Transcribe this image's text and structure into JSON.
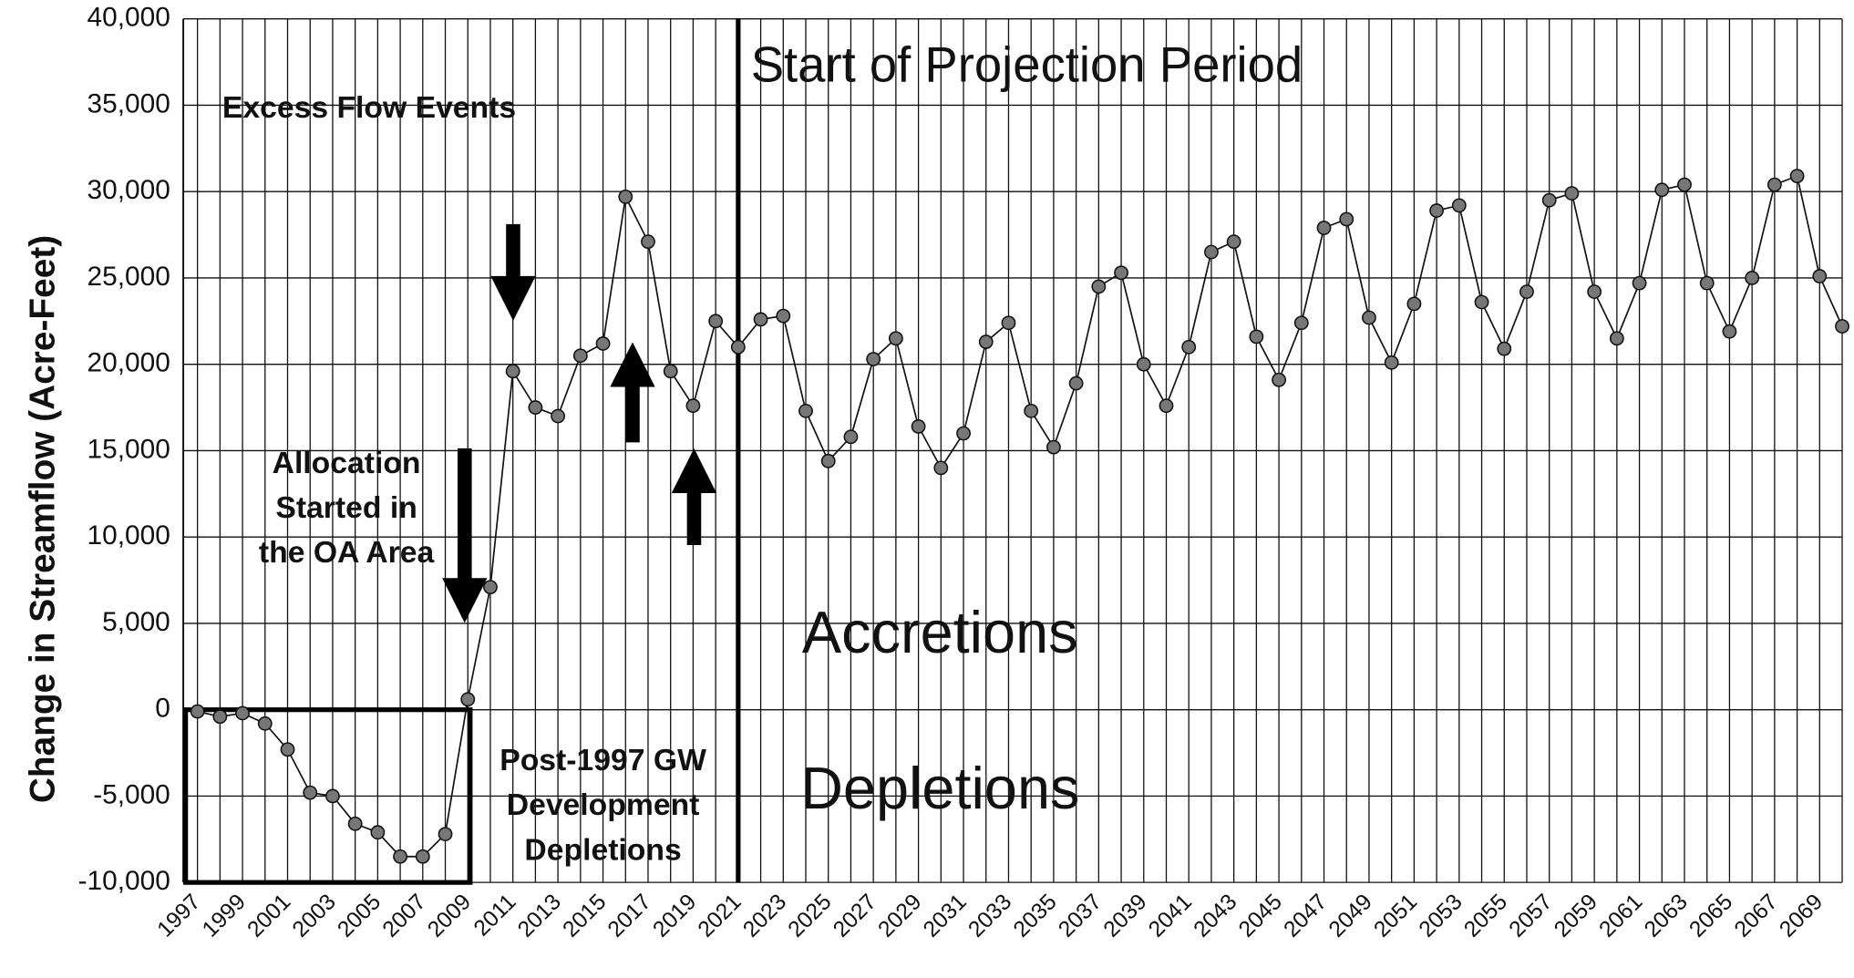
{
  "chart_data": {
    "type": "line",
    "y_label": "Change in Streamflow (Acre-Feet)",
    "categories": [
      1997,
      null,
      1999,
      null,
      2001,
      null,
      2003,
      null,
      2005,
      null,
      2007,
      null,
      2009,
      null,
      2011,
      null,
      2013,
      null,
      2015,
      null,
      2017,
      null,
      2019,
      null,
      2021,
      null,
      2023,
      null,
      2025,
      null,
      2027,
      null,
      2029,
      null,
      2031,
      null,
      2033,
      null,
      2035,
      null,
      2037,
      null,
      2039,
      null,
      2041,
      null,
      2043,
      null,
      2045,
      null,
      2047,
      null,
      2049,
      null,
      2051,
      null,
      2053,
      null,
      2055,
      null,
      2057,
      null,
      2059,
      null,
      2061,
      null,
      2063,
      null,
      2065,
      null,
      2067,
      null,
      2069,
      null
    ],
    "series": [
      {
        "name": "Change in Streamflow",
        "color": "#777777",
        "values": [
          -100,
          -400,
          -200,
          -800,
          -2300,
          -4800,
          -5000,
          -6600,
          -7100,
          -8500,
          -8500,
          -7200,
          600,
          7100,
          19600,
          17500,
          17000,
          20500,
          21200,
          29700,
          27100,
          19600,
          17600,
          22500,
          21000,
          22600,
          22800,
          17300,
          14400,
          15800,
          20300,
          21500,
          16400,
          14000,
          16000,
          21300,
          22400,
          17300,
          15200,
          18900,
          24500,
          25300,
          20000,
          17600,
          21000,
          26500,
          27100,
          21600,
          19100,
          22400,
          27900,
          28400,
          22700,
          20100,
          23500,
          28900,
          29200,
          23600,
          20900,
          24200,
          29500,
          29900,
          24200,
          21500,
          24700,
          30100,
          30400,
          24700,
          21900,
          25000,
          30400,
          30900,
          25100,
          22200
        ]
      }
    ],
    "ylim": [
      -10000,
      40000
    ],
    "yticks": [
      {
        "value": -10000,
        "label": "-10,000"
      },
      {
        "value": -5000,
        "label": "-5,000"
      },
      0,
      {
        "value": 5000,
        "label": "5,000"
      },
      {
        "value": 10000,
        "label": "10,000"
      },
      {
        "value": 15000,
        "label": "15,000"
      },
      {
        "value": 20000,
        "label": "20,000"
      },
      {
        "value": 25000,
        "label": "25,000"
      },
      {
        "value": 30000,
        "label": "30,000"
      },
      {
        "value": 35000,
        "label": "35,000"
      },
      {
        "value": 40000,
        "label": "40,000"
      }
    ],
    "grid": true,
    "annotations": {
      "projection": "Start of Projection Period",
      "excess": "Excess Flow Events",
      "allocation": [
        "Allocation",
        "Started in",
        "the OA Area"
      ],
      "post": [
        "Post-1997 GW",
        "Development",
        "Depletions"
      ],
      "accretions": "Accretions",
      "depletions": "Depletions"
    }
  }
}
